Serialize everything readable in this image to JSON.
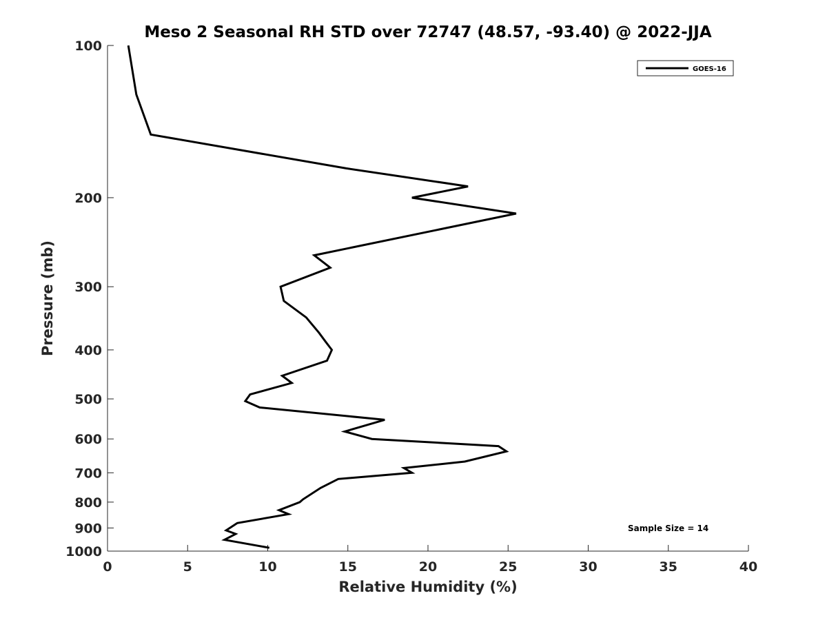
{
  "chart_data": {
    "type": "line",
    "title": "Meso 2 Seasonal RH STD over 72747 (48.57, -93.40) @ 2022-JJA",
    "xlabel": "Relative Humidity (%)",
    "ylabel": "Pressure (mb)",
    "xlim": [
      0,
      40
    ],
    "ylim": [
      1000,
      100
    ],
    "yscale": "log",
    "y_reversed": true,
    "xticks": [
      0,
      5,
      10,
      15,
      20,
      25,
      30,
      35,
      40
    ],
    "yticks": [
      100,
      200,
      300,
      400,
      500,
      600,
      700,
      800,
      900,
      1000
    ],
    "grid": false,
    "legend_position": "top-right",
    "annotation": "Sample Size = 14",
    "series": [
      {
        "name": "GOES-16",
        "color": "#000000",
        "points": [
          {
            "x": 1.3,
            "p": 100
          },
          {
            "x": 1.8,
            "p": 125
          },
          {
            "x": 2.7,
            "p": 150
          },
          {
            "x": 14.9,
            "p": 175
          },
          {
            "x": 22.5,
            "p": 190
          },
          {
            "x": 19.0,
            "p": 200
          },
          {
            "x": 25.5,
            "p": 215
          },
          {
            "x": 12.9,
            "p": 260
          },
          {
            "x": 13.9,
            "p": 275
          },
          {
            "x": 10.8,
            "p": 300
          },
          {
            "x": 11.0,
            "p": 320
          },
          {
            "x": 12.4,
            "p": 345
          },
          {
            "x": 13.2,
            "p": 370
          },
          {
            "x": 13.6,
            "p": 385
          },
          {
            "x": 14.0,
            "p": 400
          },
          {
            "x": 13.7,
            "p": 420
          },
          {
            "x": 10.9,
            "p": 450
          },
          {
            "x": 11.5,
            "p": 465
          },
          {
            "x": 8.9,
            "p": 490
          },
          {
            "x": 8.6,
            "p": 505
          },
          {
            "x": 9.5,
            "p": 520
          },
          {
            "x": 17.3,
            "p": 550
          },
          {
            "x": 14.8,
            "p": 580
          },
          {
            "x": 16.5,
            "p": 600
          },
          {
            "x": 24.4,
            "p": 620
          },
          {
            "x": 24.9,
            "p": 635
          },
          {
            "x": 22.3,
            "p": 665
          },
          {
            "x": 18.5,
            "p": 685
          },
          {
            "x": 19.0,
            "p": 700
          },
          {
            "x": 14.4,
            "p": 720
          },
          {
            "x": 13.3,
            "p": 750
          },
          {
            "x": 12.2,
            "p": 790
          },
          {
            "x": 12.0,
            "p": 800
          },
          {
            "x": 10.7,
            "p": 830
          },
          {
            "x": 11.3,
            "p": 845
          },
          {
            "x": 8.1,
            "p": 880
          },
          {
            "x": 7.4,
            "p": 910
          },
          {
            "x": 8.0,
            "p": 925
          },
          {
            "x": 7.3,
            "p": 950
          },
          {
            "x": 10.1,
            "p": 985
          }
        ]
      }
    ]
  }
}
